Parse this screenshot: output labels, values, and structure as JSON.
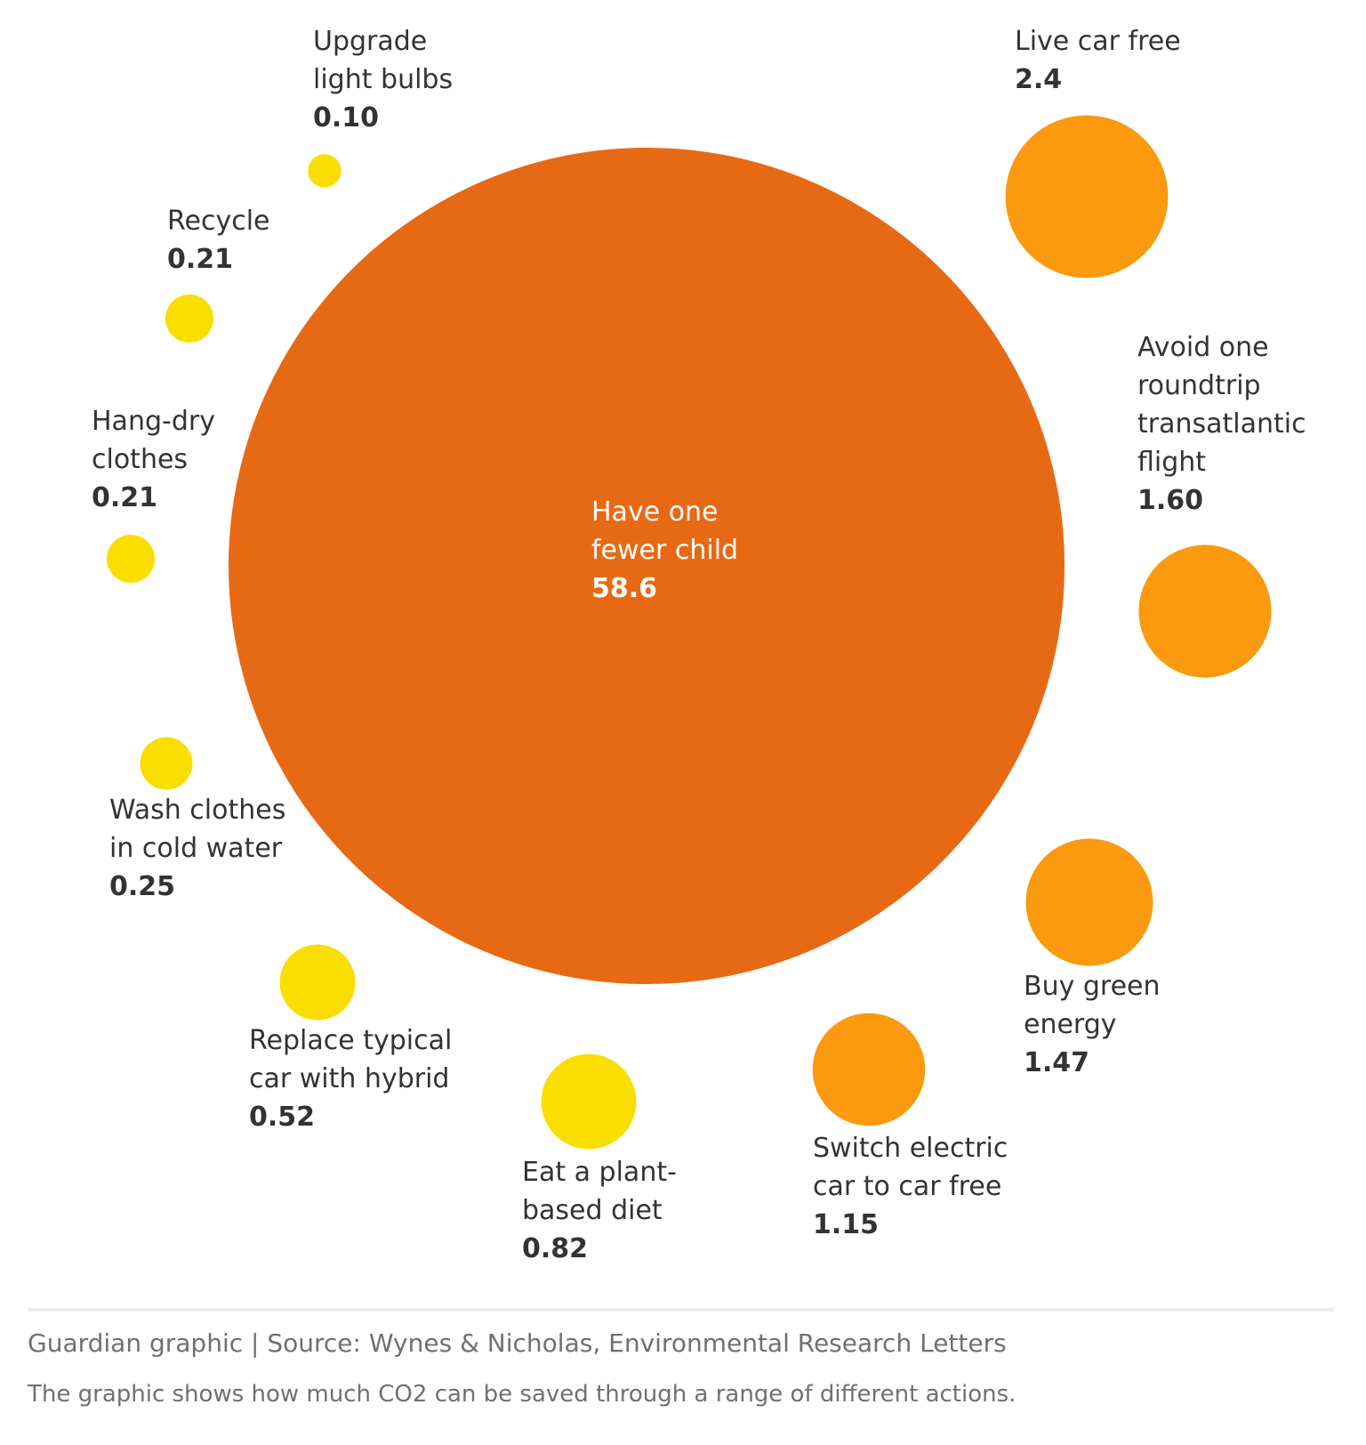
{
  "chart_data": {
    "type": "bubble",
    "colors": {
      "large": "#e86914",
      "medium": "#fb9a0f",
      "small": "#f9de00",
      "text": "#333333",
      "inside_text": "#ffffff"
    },
    "bubbles": [
      {
        "label": [
          "Have one",
          "fewer child"
        ],
        "value": "58.6",
        "v": 58.6,
        "color": "large"
      },
      {
        "label": [
          "Live car free"
        ],
        "value": "2.4",
        "v": 2.4,
        "color": "medium"
      },
      {
        "label": [
          "Avoid one",
          "roundtrip",
          "transatlantic",
          "flight"
        ],
        "value": "1.60",
        "v": 1.6,
        "color": "medium"
      },
      {
        "label": [
          "Buy green",
          "energy"
        ],
        "value": "1.47",
        "v": 1.47,
        "color": "medium"
      },
      {
        "label": [
          "Switch electric",
          "car to car free"
        ],
        "value": "1.15",
        "v": 1.15,
        "color": "medium"
      },
      {
        "label": [
          "Eat a plant-",
          "based diet"
        ],
        "value": "0.82",
        "v": 0.82,
        "color": "small"
      },
      {
        "label": [
          "Replace typical",
          "car with hybrid"
        ],
        "value": "0.52",
        "v": 0.52,
        "color": "small"
      },
      {
        "label": [
          "Wash clothes",
          "in cold water"
        ],
        "value": "0.25",
        "v": 0.25,
        "color": "small"
      },
      {
        "label": [
          "Hang-dry",
          "clothes"
        ],
        "value": "0.21",
        "v": 0.21,
        "color": "small"
      },
      {
        "label": [
          "Recycle"
        ],
        "value": "0.21",
        "v": 0.21,
        "color": "small"
      },
      {
        "label": [
          "Upgrade",
          "light bulbs"
        ],
        "value": "0.10",
        "v": 0.1,
        "color": "small"
      }
    ]
  },
  "footer": {
    "source": "Guardian graphic | Source: Wynes & Nicholas, Environmental Research Letters",
    "caption": "The graphic shows how much CO2 can be saved through a range of different actions."
  }
}
